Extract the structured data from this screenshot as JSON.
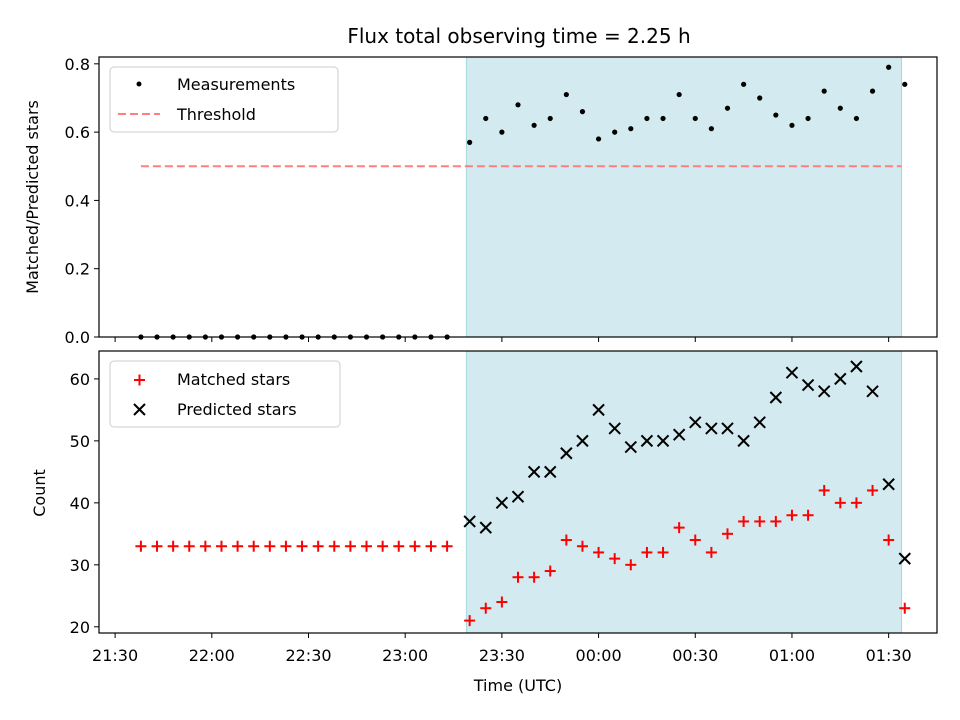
{
  "chart_data": {
    "title": "Flux total observing time = 2.25 h",
    "xlabel": "Time (UTC)",
    "x_ticks": [
      "21:30",
      "22:00",
      "22:30",
      "23:00",
      "23:30",
      "00:00",
      "00:30",
      "01:00",
      "01:30"
    ],
    "x_range": [
      "21:25",
      "01:45"
    ],
    "shaded_interval": [
      "23:19",
      "01:34"
    ],
    "shade_color": "#d3ebf0",
    "panels": [
      {
        "type": "scatter",
        "ylabel": "Matched/Predicted stars",
        "ylim": [
          0,
          0.82
        ],
        "y_ticks": [
          "0.0",
          "0.2",
          "0.4",
          "0.6",
          "0.8"
        ],
        "legend": "top-left",
        "series": [
          {
            "name": "Measurements",
            "marker": "dot",
            "color": "#000000",
            "x": [
              "21:38",
              "21:43",
              "21:48",
              "21:53",
              "21:58",
              "22:03",
              "22:08",
              "22:13",
              "22:18",
              "22:23",
              "22:28",
              "22:33",
              "22:38",
              "22:43",
              "22:48",
              "22:53",
              "22:58",
              "23:03",
              "23:08",
              "23:13",
              "23:20",
              "23:25",
              "23:30",
              "23:35",
              "23:40",
              "23:45",
              "23:50",
              "23:55",
              "00:00",
              "00:05",
              "00:10",
              "00:15",
              "00:20",
              "00:25",
              "00:30",
              "00:35",
              "00:40",
              "00:45",
              "00:50",
              "00:55",
              "01:00",
              "01:05",
              "01:10",
              "01:15",
              "01:20",
              "01:25",
              "01:30",
              "01:35"
            ],
            "values": [
              0,
              0,
              0,
              0,
              0,
              0,
              0,
              0,
              0,
              0,
              0,
              0,
              0,
              0,
              0,
              0,
              0,
              0,
              0,
              0,
              0.57,
              0.64,
              0.6,
              0.68,
              0.62,
              0.64,
              0.71,
              0.66,
              0.58,
              0.6,
              0.61,
              0.64,
              0.64,
              0.71,
              0.64,
              0.61,
              0.67,
              0.74,
              0.7,
              0.65,
              0.62,
              0.64,
              0.72,
              0.67,
              0.64,
              0.72,
              0.79,
              0.74
            ]
          },
          {
            "name": "Threshold",
            "marker": "dashed-line",
            "color": "#ff7f7f",
            "x": [
              "21:38",
              "01:34"
            ],
            "values": [
              0.5,
              0.5
            ]
          }
        ]
      },
      {
        "type": "scatter",
        "ylabel": "Count",
        "ylim": [
          19,
          64.5
        ],
        "y_ticks": [
          "20",
          "30",
          "40",
          "50",
          "60"
        ],
        "legend": "top-left",
        "series": [
          {
            "name": "Matched stars",
            "marker": "plus",
            "color": "#ff0000",
            "x": [
              "21:38",
              "21:43",
              "21:48",
              "21:53",
              "21:58",
              "22:03",
              "22:08",
              "22:13",
              "22:18",
              "22:23",
              "22:28",
              "22:33",
              "22:38",
              "22:43",
              "22:48",
              "22:53",
              "22:58",
              "23:03",
              "23:08",
              "23:13",
              "23:20",
              "23:25",
              "23:30",
              "23:35",
              "23:40",
              "23:45",
              "23:50",
              "23:55",
              "00:00",
              "00:05",
              "00:10",
              "00:15",
              "00:20",
              "00:25",
              "00:30",
              "00:35",
              "00:40",
              "00:45",
              "00:50",
              "00:55",
              "01:00",
              "01:05",
              "01:10",
              "01:15",
              "01:20",
              "01:25",
              "01:30",
              "01:35"
            ],
            "values": [
              33,
              33,
              33,
              33,
              33,
              33,
              33,
              33,
              33,
              33,
              33,
              33,
              33,
              33,
              33,
              33,
              33,
              33,
              33,
              33,
              21,
              23,
              24,
              28,
              28,
              29,
              34,
              33,
              32,
              31,
              30,
              32,
              32,
              36,
              34,
              32,
              35,
              37,
              37,
              37,
              38,
              38,
              42,
              40,
              40,
              42,
              34,
              23
            ]
          },
          {
            "name": "Predicted stars",
            "marker": "x",
            "color": "#000000",
            "x": [
              "23:20",
              "23:25",
              "23:30",
              "23:35",
              "23:40",
              "23:45",
              "23:50",
              "23:55",
              "00:00",
              "00:05",
              "00:10",
              "00:15",
              "00:20",
              "00:25",
              "00:30",
              "00:35",
              "00:40",
              "00:45",
              "00:50",
              "00:55",
              "01:00",
              "01:05",
              "01:10",
              "01:15",
              "01:20",
              "01:25",
              "01:30",
              "01:35"
            ],
            "values": [
              37,
              36,
              40,
              41,
              45,
              45,
              48,
              50,
              55,
              52,
              49,
              50,
              50,
              51,
              53,
              52,
              52,
              50,
              53,
              57,
              61,
              59,
              58,
              60,
              62,
              58,
              43,
              31
            ]
          }
        ]
      }
    ]
  }
}
